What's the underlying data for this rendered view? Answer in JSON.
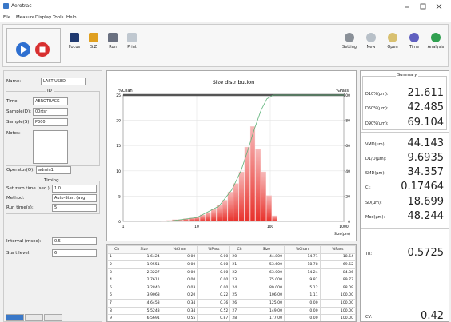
{
  "window": {
    "title": "Aerotrac"
  },
  "menu": [
    "File",
    "Measure",
    "Display",
    "Tools",
    "Help"
  ],
  "toolbar": {
    "left": [
      "Focus",
      "S.Z",
      "Run",
      "Print"
    ],
    "right": [
      "Setting",
      "New",
      "Open",
      "Time",
      "Analysis"
    ]
  },
  "form": {
    "name": {
      "label": "Name:",
      "value": "LAST USED"
    },
    "id_group": "ID",
    "id_fields": [
      {
        "label": "Time:",
        "value": "AEROTRACK"
      },
      {
        "label": "Sample(D):",
        "value": "00rtsr"
      },
      {
        "label": "Sample(S):",
        "value": "P300"
      }
    ],
    "notes_label": "Notes:",
    "operator": {
      "label": "Operator(O):",
      "value": "admin1"
    },
    "timing_group": "Timing",
    "timing_fields": [
      {
        "label": "Set zero time (sec.):",
        "value": "1.0"
      },
      {
        "label": "Method:",
        "value": "Auto-Start (avg)"
      },
      {
        "label": "Run time(s):",
        "value": "5"
      }
    ],
    "extra_fields": [
      {
        "label": "Interval (msec):",
        "value": "0.5"
      },
      {
        "label": "Start level:",
        "value": "6"
      }
    ]
  },
  "chart": {
    "type": "histogram",
    "title": "Size distribution",
    "ylabel": "%Chan",
    "y2label": "%Pass",
    "xlabel": "Size(µm)",
    "bins": [
      3.284,
      3.9063,
      4.6453,
      5.5243,
      6.5691,
      7.82,
      9.31,
      11.08,
      13.2,
      15.7,
      18.7,
      22.3,
      26.5,
      31.6,
      37.6,
      44.8,
      53.6,
      63,
      75,
      89,
      106,
      125
    ],
    "values": [
      0.03,
      0.2,
      0.34,
      0.34,
      0.55,
      0.7,
      0.9,
      1.3,
      1.8,
      2.4,
      3.2,
      4.2,
      5.8,
      7.5,
      9.8,
      14.71,
      18.78,
      14.24,
      9.81,
      5.12,
      1.11
    ],
    "color": "#e8302a",
    "cumulative": {
      "x": [
        4,
        10,
        20,
        30,
        40,
        50,
        60,
        75,
        90,
        110,
        1000
      ],
      "values": [
        0,
        3,
        12,
        25,
        40,
        57,
        72,
        88,
        97,
        100,
        100
      ],
      "color": "#5fb37a",
      "axis": "y2"
    },
    "xscale": "log",
    "xlim": [
      1,
      1000
    ],
    "xticks": [
      1,
      10,
      100,
      1000
    ],
    "ylim": [
      0,
      25
    ],
    "yticks": [
      0,
      5,
      10,
      15,
      20,
      25
    ],
    "y2lim": [
      0,
      100
    ],
    "y2ticks": [
      0,
      20,
      40,
      60,
      80,
      100
    ],
    "grid": true
  },
  "table": {
    "columns": [
      "Ch",
      "Size",
      "%Chan",
      "%Pass",
      "Ch",
      "Size",
      "%Chan",
      "%Pass"
    ],
    "rows": [
      [
        "1",
        "1.6424",
        "0.00",
        "0.00",
        "20",
        "44.800",
        "14.71",
        "18.54"
      ],
      [
        "2",
        "1.9551",
        "0.00",
        "0.00",
        "21",
        "53.600",
        "18.78",
        "69.52"
      ],
      [
        "3",
        "2.3227",
        "0.00",
        "0.00",
        "22",
        "63.000",
        "14.24",
        "84.36"
      ],
      [
        "4",
        "2.7611",
        "0.00",
        "0.00",
        "23",
        "75.000",
        "9.81",
        "89.77"
      ],
      [
        "5",
        "3.2840",
        "0.03",
        "0.00",
        "24",
        "89.000",
        "5.12",
        "98.09"
      ],
      [
        "6",
        "3.9063",
        "0.20",
        "0.22",
        "25",
        "106.00",
        "1.11",
        "100.00"
      ],
      [
        "7",
        "4.6453",
        "0.34",
        "0.36",
        "26",
        "125.00",
        "0.00",
        "100.00"
      ],
      [
        "8",
        "5.5243",
        "0.34",
        "0.52",
        "27",
        "149.00",
        "0.00",
        "100.00"
      ],
      [
        "9",
        "6.5691",
        "0.55",
        "0.87",
        "28",
        "177.00",
        "0.00",
        "100.00"
      ]
    ]
  },
  "summary": {
    "title": "Summary",
    "items": [
      {
        "label": "D10%(µm):",
        "value": 21.611
      },
      {
        "label": "D50%(µm):",
        "value": 42.485
      },
      {
        "label": "D90%(µm):",
        "value": 69.104
      },
      {
        "label": "VMD(µm):",
        "value": 44.143
      },
      {
        "label": "D1/D(µm):",
        "value": 9.6935
      },
      {
        "label": "SMD(µm):",
        "value": 34.357
      },
      {
        "label": "CI:",
        "value": 0.17464
      },
      {
        "label": "SD(µm):",
        "value": 18.699
      },
      {
        "label": "Mod(µm):",
        "value": 48.244
      },
      {
        "label": "TR:",
        "value": 0.5725
      },
      {
        "label": "CV:",
        "value": 0.42
      }
    ]
  }
}
